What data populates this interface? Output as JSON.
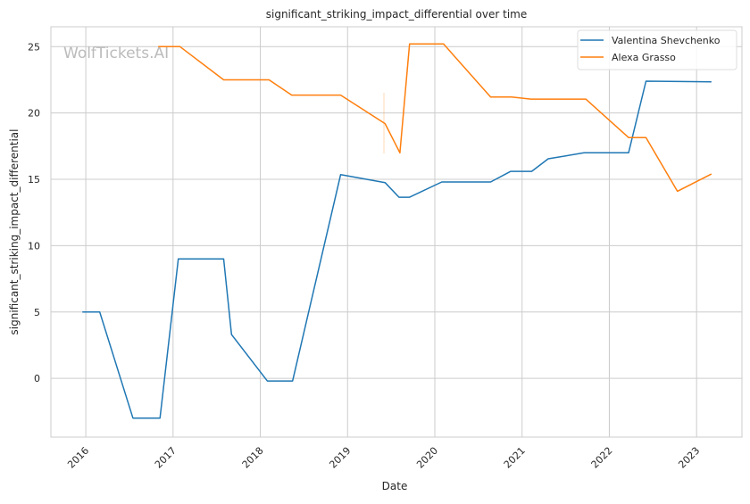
{
  "chart_data": {
    "type": "line",
    "title": "significant_striking_impact_differential over time",
    "xlabel": "Date",
    "ylabel": "significant_striking_impact_differential",
    "watermark": "WolfTickets.AI",
    "xlim": [
      2015.6,
      2023.52
    ],
    "ylim": [
      -4.43,
      26.5
    ],
    "x_ticks": [
      2016,
      2017,
      2018,
      2019,
      2020,
      2021,
      2022,
      2023
    ],
    "x_tick_labels": [
      "2016",
      "2017",
      "2018",
      "2019",
      "2020",
      "2021",
      "2022",
      "2023"
    ],
    "y_ticks": [
      0,
      5,
      10,
      15,
      20,
      25
    ],
    "y_tick_labels": [
      "0",
      "5",
      "10",
      "15",
      "20",
      "25"
    ],
    "grid": true,
    "legend_position": "top-right",
    "series": [
      {
        "name": "Valentina Shevchenko",
        "color": "#1f77b4",
        "x": [
          2015.96,
          2016.16,
          2016.54,
          2016.85,
          2017.06,
          2017.58,
          2017.67,
          2018.08,
          2018.37,
          2018.92,
          2019.43,
          2019.59,
          2019.71,
          2020.08,
          2020.64,
          2020.87,
          2021.11,
          2021.3,
          2021.71,
          2022.22,
          2022.42,
          2023.17
        ],
        "y": [
          5.0,
          5.0,
          -3.0,
          -3.0,
          9.0,
          9.0,
          3.3,
          -0.2,
          -0.2,
          15.35,
          14.75,
          13.65,
          13.65,
          14.8,
          14.8,
          15.6,
          15.6,
          16.55,
          17.0,
          17.0,
          22.4,
          22.35
        ]
      },
      {
        "name": "Alexa Grasso",
        "color": "#ff7f0e",
        "x": [
          2016.83,
          2017.08,
          2017.58,
          2018.1,
          2018.36,
          2018.92,
          2019.43,
          2019.6,
          2019.71,
          2020.1,
          2020.64,
          2020.88,
          2021.1,
          2021.73,
          2022.22,
          2022.42,
          2022.78,
          2023.17
        ],
        "y": [
          25.0,
          25.0,
          22.5,
          22.5,
          21.35,
          21.35,
          19.2,
          17.0,
          25.2,
          25.2,
          21.2,
          21.2,
          21.05,
          21.05,
          18.15,
          18.15,
          14.1,
          15.4
        ]
      }
    ]
  }
}
